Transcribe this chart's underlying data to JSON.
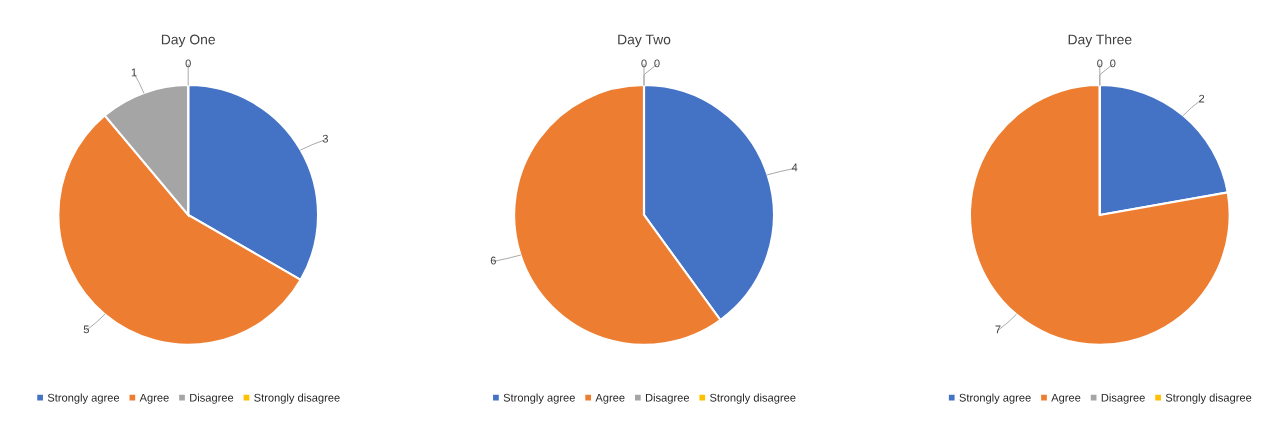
{
  "chart_data": [
    {
      "type": "pie",
      "title": "Day One",
      "categories": [
        "Strongly agree",
        "Agree",
        "Disagree",
        "Strongly disagree"
      ],
      "values": [
        3,
        5,
        1,
        0
      ],
      "value_labels": [
        "3",
        "5",
        "1",
        "0"
      ],
      "colors": [
        "#4472c4",
        "#ed7d31",
        "#a5a5a5",
        "#ffc000"
      ],
      "legend": "bottom"
    },
    {
      "type": "pie",
      "title": "Day Two",
      "categories": [
        "Strongly agree",
        "Agree",
        "Disagree",
        "Strongly disagree"
      ],
      "values": [
        4,
        6,
        0,
        0
      ],
      "value_labels": [
        "4",
        "6",
        "0",
        "0"
      ],
      "colors": [
        "#4472c4",
        "#ed7d31",
        "#a5a5a5",
        "#ffc000"
      ],
      "legend": "bottom"
    },
    {
      "type": "pie",
      "title": "Day Three",
      "categories": [
        "Strongly agree",
        "Agree",
        "Disagree",
        "Strongly disagree"
      ],
      "values": [
        2,
        7,
        0,
        0
      ],
      "value_labels": [
        "2",
        "7",
        "0",
        "0"
      ],
      "colors": [
        "#4472c4",
        "#ed7d31",
        "#a5a5a5",
        "#ffc000"
      ],
      "legend": "bottom"
    }
  ]
}
